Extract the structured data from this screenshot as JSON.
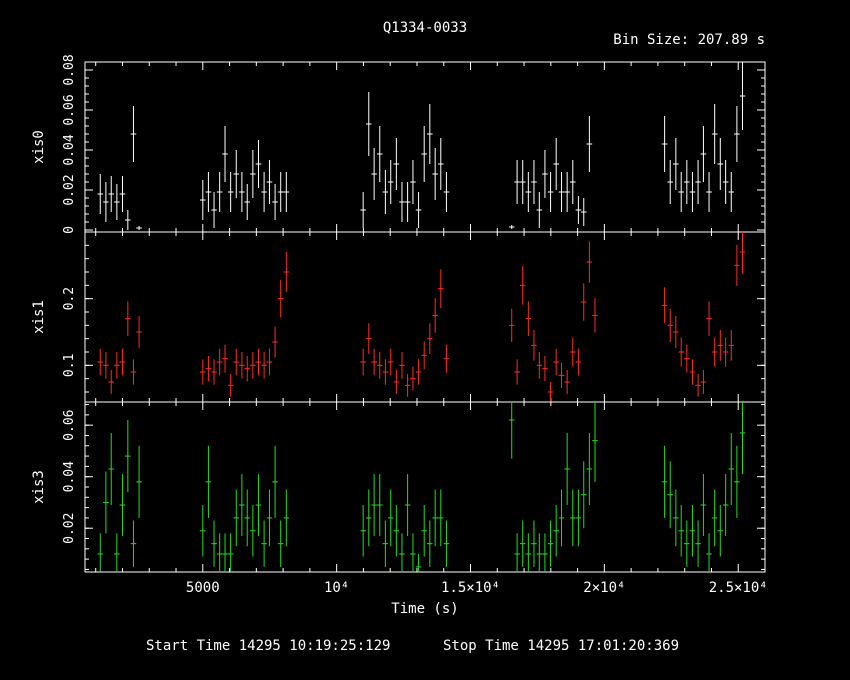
{
  "chart_data": {
    "type": "scatter",
    "title": "Q1334-0033",
    "bin_label": "Bin Size: 207.89 s",
    "xlabel": "Time (s)",
    "xlim": [
      600,
      26000
    ],
    "x_ticks": [
      {
        "value": 5000,
        "label": "5000"
      },
      {
        "value": 10000,
        "label": "10⁴"
      },
      {
        "value": 15000,
        "label": "1.5×10⁴"
      },
      {
        "value": 20000,
        "label": "2×10⁴"
      },
      {
        "value": 25000,
        "label": "2.5×10⁴"
      }
    ],
    "footer": {
      "start": "Start Time 14295 10:19:25:129",
      "stop": "Stop Time 14295 17:01:20:369"
    },
    "panels": [
      {
        "name": "xis0",
        "ylabel": "xis0",
        "color": "#ffffff",
        "ylim": [
          -0.001,
          0.084
        ],
        "y_ticks": [
          {
            "value": 0,
            "label": "0"
          },
          {
            "value": 0.02,
            "label": "0.02"
          },
          {
            "value": 0.04,
            "label": "0.04"
          },
          {
            "value": 0.06,
            "label": "0.06"
          },
          {
            "value": 0.08,
            "label": "0.08"
          }
        ],
        "points": [
          [
            1170,
            0.018,
            0.01
          ],
          [
            1380,
            0.014,
            0.01
          ],
          [
            1580,
            0.018,
            0.009
          ],
          [
            1790,
            0.014,
            0.009
          ],
          [
            2000,
            0.018,
            0.009
          ],
          [
            2200,
            0.005,
            0.005
          ],
          [
            2410,
            0.048,
            0.014
          ],
          [
            2620,
            0.001,
            0.001
          ],
          [
            5000,
            0.015,
            0.01
          ],
          [
            5210,
            0.019,
            0.01
          ],
          [
            5420,
            0.01,
            0.009
          ],
          [
            5630,
            0.019,
            0.01
          ],
          [
            5830,
            0.038,
            0.014
          ],
          [
            6040,
            0.019,
            0.01
          ],
          [
            6250,
            0.028,
            0.012
          ],
          [
            6460,
            0.019,
            0.01
          ],
          [
            6660,
            0.014,
            0.009
          ],
          [
            6870,
            0.028,
            0.012
          ],
          [
            7080,
            0.033,
            0.012
          ],
          [
            7290,
            0.019,
            0.01
          ],
          [
            7490,
            0.024,
            0.011
          ],
          [
            7700,
            0.014,
            0.009
          ],
          [
            7910,
            0.019,
            0.01
          ],
          [
            8120,
            0.019,
            0.01
          ],
          [
            10990,
            0.01,
            0.009
          ],
          [
            11200,
            0.053,
            0.016
          ],
          [
            11400,
            0.028,
            0.013
          ],
          [
            11610,
            0.038,
            0.014
          ],
          [
            11820,
            0.019,
            0.011
          ],
          [
            12020,
            0.024,
            0.011
          ],
          [
            12230,
            0.033,
            0.013
          ],
          [
            12440,
            0.014,
            0.01
          ],
          [
            12650,
            0.014,
            0.01
          ],
          [
            12850,
            0.024,
            0.011
          ],
          [
            13060,
            0.01,
            0.009
          ],
          [
            13270,
            0.038,
            0.014
          ],
          [
            13480,
            0.048,
            0.015
          ],
          [
            13680,
            0.028,
            0.013
          ],
          [
            13890,
            0.033,
            0.013
          ],
          [
            14100,
            0.019,
            0.01
          ],
          [
            16540,
            0.0015,
            0.001
          ],
          [
            16740,
            0.024,
            0.011
          ],
          [
            16950,
            0.024,
            0.011
          ],
          [
            17160,
            0.019,
            0.01
          ],
          [
            17370,
            0.024,
            0.011
          ],
          [
            17570,
            0.01,
            0.009
          ],
          [
            17780,
            0.028,
            0.012
          ],
          [
            17990,
            0.019,
            0.01
          ],
          [
            18200,
            0.033,
            0.013
          ],
          [
            18400,
            0.019,
            0.01
          ],
          [
            18610,
            0.019,
            0.01
          ],
          [
            18820,
            0.024,
            0.011
          ],
          [
            19030,
            0.01,
            0.007
          ],
          [
            19230,
            0.009,
            0.007
          ],
          [
            19440,
            0.043,
            0.014
          ],
          [
            22250,
            0.043,
            0.014
          ],
          [
            22460,
            0.024,
            0.011
          ],
          [
            22670,
            0.033,
            0.013
          ],
          [
            22870,
            0.019,
            0.01
          ],
          [
            23080,
            0.024,
            0.011
          ],
          [
            23290,
            0.019,
            0.01
          ],
          [
            23500,
            0.024,
            0.011
          ],
          [
            23700,
            0.038,
            0.014
          ],
          [
            23910,
            0.019,
            0.01
          ],
          [
            24120,
            0.048,
            0.015
          ],
          [
            24330,
            0.033,
            0.013
          ],
          [
            24530,
            0.024,
            0.011
          ],
          [
            24740,
            0.019,
            0.01
          ],
          [
            24950,
            0.048,
            0.014
          ],
          [
            25160,
            0.067,
            0.017
          ]
        ]
      },
      {
        "name": "xis1",
        "ylabel": "xis1",
        "color": "#ff2a2a",
        "ylim": [
          0.045,
          0.3
        ],
        "y_ticks": [
          {
            "value": 0.1,
            "label": "0.1"
          },
          {
            "value": 0.2,
            "label": "0.2"
          }
        ],
        "points": [
          [
            1170,
            0.105,
            0.02
          ],
          [
            1380,
            0.1,
            0.02
          ],
          [
            1580,
            0.075,
            0.018
          ],
          [
            1790,
            0.1,
            0.02
          ],
          [
            2000,
            0.105,
            0.02
          ],
          [
            2200,
            0.17,
            0.026
          ],
          [
            2410,
            0.09,
            0.019
          ],
          [
            2620,
            0.15,
            0.024
          ],
          [
            5000,
            0.09,
            0.019
          ],
          [
            5210,
            0.095,
            0.019
          ],
          [
            5420,
            0.09,
            0.019
          ],
          [
            5630,
            0.105,
            0.02
          ],
          [
            5830,
            0.11,
            0.021
          ],
          [
            6040,
            0.07,
            0.017
          ],
          [
            6250,
            0.105,
            0.02
          ],
          [
            6460,
            0.1,
            0.02
          ],
          [
            6660,
            0.095,
            0.019
          ],
          [
            6870,
            0.1,
            0.02
          ],
          [
            7080,
            0.105,
            0.02
          ],
          [
            7290,
            0.1,
            0.02
          ],
          [
            7490,
            0.105,
            0.02
          ],
          [
            7700,
            0.135,
            0.023
          ],
          [
            7910,
            0.2,
            0.028
          ],
          [
            8120,
            0.24,
            0.03
          ],
          [
            10990,
            0.105,
            0.02
          ],
          [
            11200,
            0.14,
            0.023
          ],
          [
            11400,
            0.105,
            0.02
          ],
          [
            11610,
            0.1,
            0.02
          ],
          [
            11820,
            0.09,
            0.019
          ],
          [
            12020,
            0.105,
            0.02
          ],
          [
            12230,
            0.075,
            0.018
          ],
          [
            12440,
            0.1,
            0.02
          ],
          [
            12650,
            0.07,
            0.017
          ],
          [
            12850,
            0.08,
            0.018
          ],
          [
            13060,
            0.09,
            0.019
          ],
          [
            13270,
            0.115,
            0.021
          ],
          [
            13480,
            0.14,
            0.023
          ],
          [
            13680,
            0.175,
            0.026
          ],
          [
            13890,
            0.215,
            0.029
          ],
          [
            14100,
            0.11,
            0.021
          ],
          [
            16540,
            0.16,
            0.025
          ],
          [
            16740,
            0.09,
            0.019
          ],
          [
            16950,
            0.22,
            0.029
          ],
          [
            17160,
            0.17,
            0.026
          ],
          [
            17370,
            0.13,
            0.023
          ],
          [
            17570,
            0.1,
            0.02
          ],
          [
            17780,
            0.095,
            0.019
          ],
          [
            17990,
            0.06,
            0.015
          ],
          [
            18200,
            0.105,
            0.02
          ],
          [
            18400,
            0.085,
            0.019
          ],
          [
            18610,
            0.075,
            0.018
          ],
          [
            18820,
            0.12,
            0.022
          ],
          [
            19030,
            0.105,
            0.02
          ],
          [
            19230,
            0.195,
            0.028
          ],
          [
            19440,
            0.255,
            0.031
          ],
          [
            19650,
            0.175,
            0.026
          ],
          [
            22250,
            0.19,
            0.027
          ],
          [
            22460,
            0.16,
            0.025
          ],
          [
            22670,
            0.15,
            0.024
          ],
          [
            22870,
            0.12,
            0.022
          ],
          [
            23080,
            0.11,
            0.021
          ],
          [
            23290,
            0.09,
            0.019
          ],
          [
            23500,
            0.07,
            0.017
          ],
          [
            23700,
            0.075,
            0.018
          ],
          [
            23910,
            0.17,
            0.026
          ],
          [
            24120,
            0.12,
            0.022
          ],
          [
            24330,
            0.13,
            0.023
          ],
          [
            24530,
            0.12,
            0.022
          ],
          [
            24740,
            0.13,
            0.023
          ],
          [
            24950,
            0.25,
            0.031
          ],
          [
            25160,
            0.27,
            0.032
          ]
        ]
      },
      {
        "name": "xis3",
        "ylabel": "xis3",
        "color": "#22dd22",
        "ylim": [
          0.003,
          0.069
        ],
        "y_ticks": [
          {
            "value": 0.02,
            "label": "0.02"
          },
          {
            "value": 0.04,
            "label": "0.04"
          },
          {
            "value": 0.06,
            "label": "0.06"
          }
        ],
        "points": [
          [
            1170,
            0.01,
            0.008
          ],
          [
            1380,
            0.03,
            0.012
          ],
          [
            1580,
            0.043,
            0.014
          ],
          [
            1790,
            0.01,
            0.008
          ],
          [
            2000,
            0.029,
            0.012
          ],
          [
            2200,
            0.048,
            0.014
          ],
          [
            2410,
            0.014,
            0.009
          ],
          [
            2620,
            0.038,
            0.014
          ],
          [
            5000,
            0.019,
            0.01
          ],
          [
            5210,
            0.038,
            0.014
          ],
          [
            5420,
            0.014,
            0.009
          ],
          [
            5630,
            0.01,
            0.008
          ],
          [
            5830,
            0.01,
            0.008
          ],
          [
            6040,
            0.01,
            0.008
          ],
          [
            6250,
            0.024,
            0.011
          ],
          [
            6460,
            0.029,
            0.012
          ],
          [
            6660,
            0.024,
            0.011
          ],
          [
            6870,
            0.019,
            0.01
          ],
          [
            7080,
            0.029,
            0.012
          ],
          [
            7290,
            0.014,
            0.009
          ],
          [
            7490,
            0.024,
            0.011
          ],
          [
            7700,
            0.038,
            0.014
          ],
          [
            7910,
            0.014,
            0.009
          ],
          [
            8120,
            0.024,
            0.011
          ],
          [
            10990,
            0.019,
            0.01
          ],
          [
            11200,
            0.024,
            0.011
          ],
          [
            11400,
            0.029,
            0.012
          ],
          [
            11610,
            0.029,
            0.012
          ],
          [
            11820,
            0.014,
            0.009
          ],
          [
            12020,
            0.024,
            0.011
          ],
          [
            12230,
            0.019,
            0.01
          ],
          [
            12440,
            0.01,
            0.008
          ],
          [
            12650,
            0.029,
            0.012
          ],
          [
            12850,
            0.01,
            0.008
          ],
          [
            13060,
            0.005,
            0.005
          ],
          [
            13270,
            0.019,
            0.01
          ],
          [
            13480,
            0.014,
            0.009
          ],
          [
            13680,
            0.024,
            0.011
          ],
          [
            13890,
            0.024,
            0.011
          ],
          [
            14100,
            0.014,
            0.009
          ],
          [
            16540,
            0.062,
            0.015
          ],
          [
            16740,
            0.01,
            0.008
          ],
          [
            16950,
            0.014,
            0.009
          ],
          [
            17160,
            0.01,
            0.008
          ],
          [
            17370,
            0.014,
            0.009
          ],
          [
            17570,
            0.01,
            0.008
          ],
          [
            17780,
            0.01,
            0.008
          ],
          [
            17990,
            0.014,
            0.009
          ],
          [
            18200,
            0.019,
            0.01
          ],
          [
            18400,
            0.024,
            0.011
          ],
          [
            18610,
            0.043,
            0.014
          ],
          [
            18820,
            0.024,
            0.011
          ],
          [
            19030,
            0.024,
            0.011
          ],
          [
            19230,
            0.033,
            0.013
          ],
          [
            19440,
            0.043,
            0.014
          ],
          [
            19650,
            0.054,
            0.016
          ],
          [
            22250,
            0.038,
            0.014
          ],
          [
            22460,
            0.033,
            0.013
          ],
          [
            22670,
            0.024,
            0.011
          ],
          [
            22870,
            0.019,
            0.01
          ],
          [
            23080,
            0.014,
            0.009
          ],
          [
            23290,
            0.019,
            0.01
          ],
          [
            23500,
            0.014,
            0.009
          ],
          [
            23700,
            0.029,
            0.012
          ],
          [
            23910,
            0.01,
            0.008
          ],
          [
            24120,
            0.024,
            0.011
          ],
          [
            24330,
            0.019,
            0.01
          ],
          [
            24530,
            0.029,
            0.012
          ],
          [
            24740,
            0.043,
            0.014
          ],
          [
            24950,
            0.038,
            0.014
          ],
          [
            25160,
            0.057,
            0.016
          ]
        ]
      }
    ]
  }
}
